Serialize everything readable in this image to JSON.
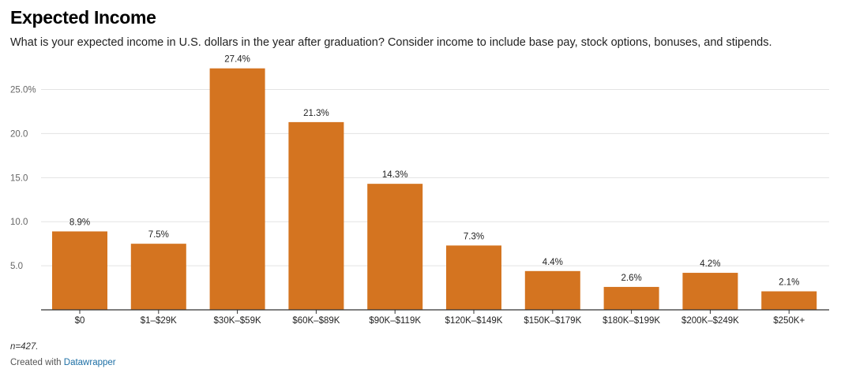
{
  "title": "Expected Income",
  "subtitle": "What is your expected income in U.S. dollars in the year after graduation? Consider income to include base pay, stock options, bonuses, and stipends.",
  "notes": "n=427.",
  "credit": {
    "prefix": "Created with",
    "link": "Datawrapper"
  },
  "colors": {
    "bar": "#d47420",
    "grid": "#e3e3e3",
    "axis": "#333333",
    "tick": "#666666"
  },
  "chart_data": {
    "type": "bar",
    "title": "Expected Income",
    "xlabel": "",
    "ylabel": "",
    "ylim": [
      0,
      28
    ],
    "grid": true,
    "categories": [
      "$0",
      "$1–$29K",
      "$30K–$59K",
      "$60K–$89K",
      "$90K–$119K",
      "$120K–$149K",
      "$150K–$179K",
      "$180K–$199K",
      "$200K–$249K",
      "$250K+"
    ],
    "values": [
      8.9,
      7.5,
      27.4,
      21.3,
      14.3,
      7.3,
      4.4,
      2.6,
      4.2,
      2.1
    ],
    "value_labels": [
      "8.9%",
      "7.5%",
      "27.4%",
      "21.3%",
      "14.3%",
      "7.3%",
      "4.4%",
      "2.6%",
      "4.2%",
      "2.1%"
    ],
    "yticks": [
      5,
      10,
      15,
      20,
      25
    ],
    "ytick_labels": [
      "5.0",
      "10.0",
      "15.0",
      "20.0",
      "25.0%"
    ]
  }
}
